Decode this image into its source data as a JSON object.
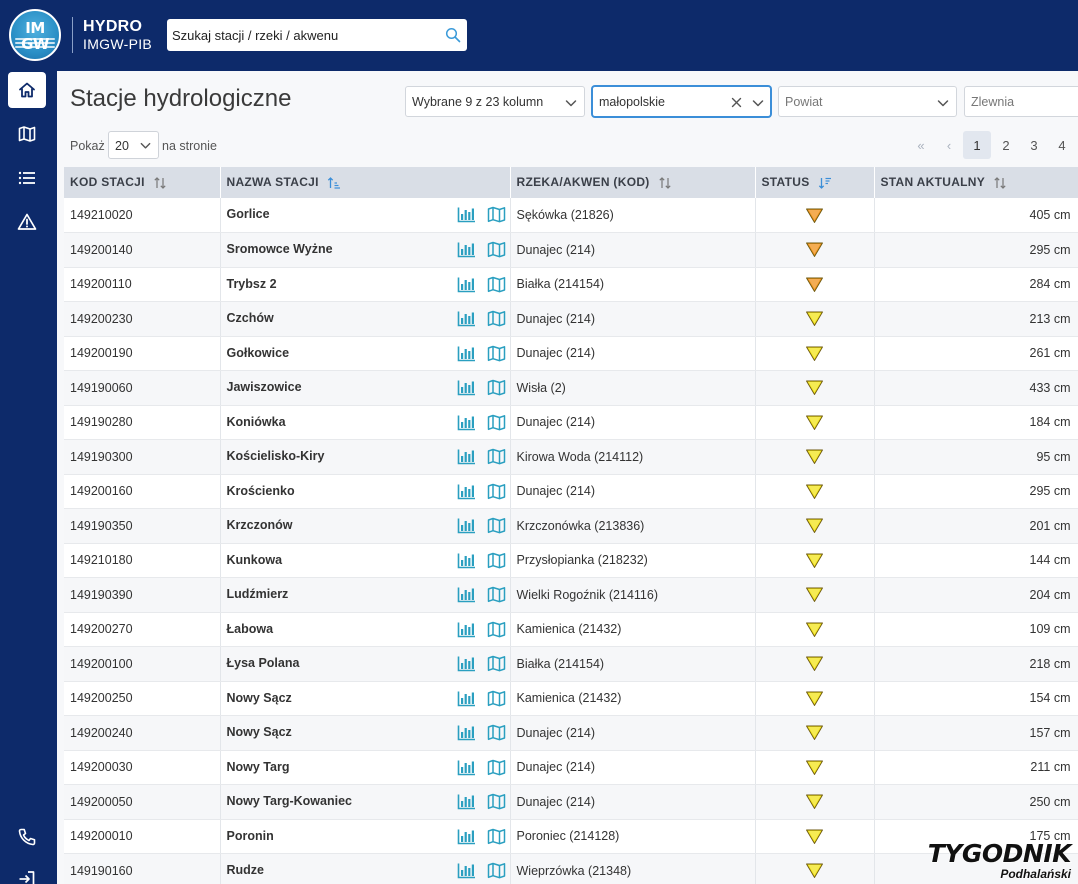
{
  "header": {
    "logo_text_top": "IM",
    "logo_text_bottom": "GW",
    "brand_title": "HYDRO",
    "brand_subtitle": "IMGW-PIB",
    "search_placeholder": "Szukaj stacji / rzeki / akwenu"
  },
  "sidebar": {
    "items": [
      {
        "name": "home",
        "icon": "home-icon",
        "active": true
      },
      {
        "name": "map",
        "icon": "map-icon",
        "active": false
      },
      {
        "name": "list",
        "icon": "list-icon",
        "active": false
      },
      {
        "name": "warnings",
        "icon": "warning-icon",
        "active": false
      },
      {
        "name": "contact",
        "icon": "phone-icon",
        "active": false
      },
      {
        "name": "login",
        "icon": "login-icon",
        "active": false
      }
    ]
  },
  "page": {
    "title": "Stacje hydrologiczne"
  },
  "filters": {
    "columns": "Wybrane 9 z 23 kolumn",
    "voivodeship": "małopolskie",
    "county_placeholder": "Powiat",
    "catchment_placeholder": "Zlewnia"
  },
  "paging": {
    "label_before": "Pokaż",
    "page_size": "20",
    "label_after": "na stronie",
    "first": "«",
    "prev": "‹",
    "pages": [
      "1",
      "2",
      "3",
      "4"
    ],
    "current_page": "1"
  },
  "table": {
    "headers": [
      "KOD STACJI",
      "NAZWA STACJI",
      "RZEKA/AKWEN (KOD)",
      "STATUS",
      "STAN AKTUALNY"
    ],
    "status_colors": {
      "orange": "#f0921a",
      "yellow": "#f3e51a"
    },
    "rows": [
      {
        "code": "149210020",
        "name": "Gorlice",
        "river": "Sękówka (21826)",
        "status": "orange",
        "level": "405 cm"
      },
      {
        "code": "149200140",
        "name": "Sromowce Wyżne",
        "river": "Dunajec (214)",
        "status": "orange",
        "level": "295 cm"
      },
      {
        "code": "149200110",
        "name": "Trybsz 2",
        "river": "Białka (214154)",
        "status": "orange",
        "level": "284 cm"
      },
      {
        "code": "149200230",
        "name": "Czchów",
        "river": "Dunajec (214)",
        "status": "yellow",
        "level": "213 cm"
      },
      {
        "code": "149200190",
        "name": "Gołkowice",
        "river": "Dunajec (214)",
        "status": "yellow",
        "level": "261 cm"
      },
      {
        "code": "149190060",
        "name": "Jawiszowice",
        "river": "Wisła (2)",
        "status": "yellow",
        "level": "433 cm"
      },
      {
        "code": "149190280",
        "name": "Koniówka",
        "river": "Dunajec (214)",
        "status": "yellow",
        "level": "184 cm"
      },
      {
        "code": "149190300",
        "name": "Kościelisko-Kiry",
        "river": "Kirowa Woda (214112)",
        "status": "yellow",
        "level": "95 cm"
      },
      {
        "code": "149200160",
        "name": "Krościenko",
        "river": "Dunajec (214)",
        "status": "yellow",
        "level": "295 cm"
      },
      {
        "code": "149190350",
        "name": "Krzczonów",
        "river": "Krzczonówka (213836)",
        "status": "yellow",
        "level": "201 cm"
      },
      {
        "code": "149210180",
        "name": "Kunkowa",
        "river": "Przysłopianka (218232)",
        "status": "yellow",
        "level": "144 cm"
      },
      {
        "code": "149190390",
        "name": "Ludźmierz",
        "river": "Wielki Rogoźnik (214116)",
        "status": "yellow",
        "level": "204 cm"
      },
      {
        "code": "149200270",
        "name": "Łabowa",
        "river": "Kamienica (21432)",
        "status": "yellow",
        "level": "109 cm"
      },
      {
        "code": "149200100",
        "name": "Łysa Polana",
        "river": "Białka (214154)",
        "status": "yellow",
        "level": "218 cm"
      },
      {
        "code": "149200250",
        "name": "Nowy Sącz",
        "river": "Kamienica (21432)",
        "status": "yellow",
        "level": "154 cm"
      },
      {
        "code": "149200240",
        "name": "Nowy Sącz",
        "river": "Dunajec (214)",
        "status": "yellow",
        "level": "157 cm"
      },
      {
        "code": "149200030",
        "name": "Nowy Targ",
        "river": "Dunajec (214)",
        "status": "yellow",
        "level": "211 cm"
      },
      {
        "code": "149200050",
        "name": "Nowy Targ-Kowaniec",
        "river": "Dunajec (214)",
        "status": "yellow",
        "level": "250 cm"
      },
      {
        "code": "149200010",
        "name": "Poronin",
        "river": "Poroniec (214128)",
        "status": "yellow",
        "level": "175 cm"
      },
      {
        "code": "149190160",
        "name": "Rudze",
        "river": "Wieprzówka (21348)",
        "status": "yellow",
        "level": ""
      }
    ]
  },
  "watermark": {
    "line1": "TYGODNIK",
    "line2": "Podhalański"
  }
}
